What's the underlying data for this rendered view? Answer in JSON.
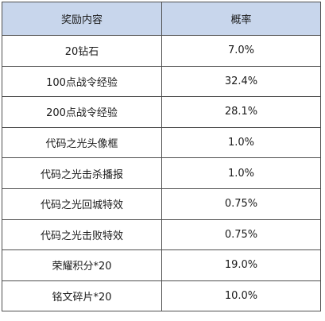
{
  "table": {
    "headers": [
      "奖励内容",
      "概率"
    ],
    "rows": [
      {
        "reward": "20钻石",
        "probability": "7.0%"
      },
      {
        "reward": "100点战令经验",
        "probability": "32.4%"
      },
      {
        "reward": "200点战令经验",
        "probability": "28.1%"
      },
      {
        "reward": "代码之光头像框",
        "probability": "1.0%"
      },
      {
        "reward": "代码之光击杀播报",
        "probability": "1.0%"
      },
      {
        "reward": "代码之光回城特效",
        "probability": "0.75%"
      },
      {
        "reward": "代码之光击败特效",
        "probability": "0.75%"
      },
      {
        "reward": "荣耀积分*20",
        "probability": "19.0%"
      },
      {
        "reward": "铭文碎片*20",
        "probability": "10.0%"
      }
    ]
  },
  "colors": {
    "header_background": "#c8d6ec",
    "border": "#4f4f4f",
    "text": "#1a1a1a"
  }
}
